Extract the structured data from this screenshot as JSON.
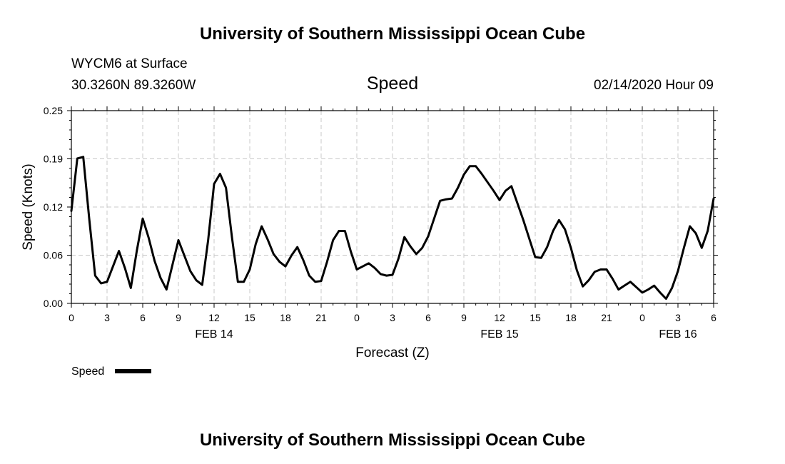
{
  "header": {
    "title": "University of Southern Mississippi Ocean Cube",
    "station": "WYCM6 at Surface",
    "coords": "30.3260N 89.3260W",
    "variable": "Speed",
    "datetime": "02/14/2020 Hour 09"
  },
  "footer": {
    "title": "University of Southern Mississippi Ocean Cube"
  },
  "chart_data": {
    "type": "line",
    "title": "Speed",
    "xlabel": "Forecast (Z)",
    "ylabel": "Speed (Knots)",
    "ylim": [
      0,
      0.25
    ],
    "xlim": [
      0,
      54
    ],
    "y_ticks": [
      "0.00",
      "0.06",
      "0.12",
      "0.19",
      "0.25"
    ],
    "y_tick_values": [
      0,
      0.0625,
      0.125,
      0.1875,
      0.25
    ],
    "x_ticks": [
      "0",
      "3",
      "6",
      "9",
      "12",
      "15",
      "18",
      "21",
      "0",
      "3",
      "6",
      "9",
      "12",
      "15",
      "18",
      "21",
      "0",
      "3",
      "6"
    ],
    "date_labels": [
      {
        "text": "FEB 14",
        "at_hour": 12
      },
      {
        "text": "FEB 15",
        "at_hour": 36
      },
      {
        "text": "FEB 16",
        "at_hour": 51
      }
    ],
    "grid": true,
    "legend": {
      "label": "Speed",
      "placement": "bottom-left"
    },
    "series": [
      {
        "name": "Speed",
        "color": "#000000",
        "x": [
          0,
          0.5,
          1,
          1.5,
          2,
          2.5,
          3,
          3.5,
          4,
          4.5,
          5,
          5.5,
          6,
          6.5,
          7,
          7.5,
          8,
          8.5,
          9,
          9.5,
          10,
          10.5,
          11,
          11.5,
          12,
          12.5,
          13,
          13.5,
          14,
          14.5,
          15,
          15.5,
          16,
          16.5,
          17,
          17.5,
          18,
          18.5,
          19,
          19.5,
          20,
          20.5,
          21,
          21.5,
          22,
          22.5,
          23,
          23.5,
          24,
          24.5,
          25,
          25.5,
          26,
          26.5,
          27,
          27.5,
          28,
          28.5,
          29,
          29.5,
          30,
          30.5,
          31,
          31.5,
          32,
          32.5,
          33,
          33.5,
          34,
          34.5,
          35,
          35.5,
          36,
          36.5,
          37,
          37.5,
          38,
          38.5,
          39,
          39.5,
          40,
          40.5,
          41,
          41.5,
          42,
          42.5,
          43,
          43.5,
          44,
          44.5,
          45,
          45.5,
          46,
          46.5,
          47,
          47.5,
          48,
          48.5,
          49,
          49.5,
          50,
          50.5,
          51,
          51.5,
          52,
          52.5,
          53,
          53.5,
          54
        ],
        "values": [
          0.12,
          0.188,
          0.19,
          0.11,
          0.036,
          0.026,
          0.028,
          0.048,
          0.068,
          0.046,
          0.02,
          0.068,
          0.11,
          0.085,
          0.055,
          0.033,
          0.018,
          0.05,
          0.082,
          0.062,
          0.042,
          0.03,
          0.024,
          0.082,
          0.155,
          0.168,
          0.15,
          0.086,
          0.028,
          0.028,
          0.044,
          0.077,
          0.1,
          0.083,
          0.064,
          0.054,
          0.048,
          0.062,
          0.073,
          0.056,
          0.036,
          0.028,
          0.029,
          0.054,
          0.082,
          0.094,
          0.094,
          0.067,
          0.044,
          0.048,
          0.052,
          0.046,
          0.038,
          0.036,
          0.037,
          0.058,
          0.086,
          0.074,
          0.064,
          0.072,
          0.087,
          0.11,
          0.133,
          0.135,
          0.136,
          0.15,
          0.167,
          0.178,
          0.178,
          0.168,
          0.157,
          0.146,
          0.134,
          0.146,
          0.152,
          0.13,
          0.108,
          0.084,
          0.06,
          0.059,
          0.073,
          0.094,
          0.108,
          0.096,
          0.072,
          0.043,
          0.022,
          0.03,
          0.041,
          0.044,
          0.044,
          0.032,
          0.018,
          0.023,
          0.028,
          0.021,
          0.014,
          0.018,
          0.023,
          0.014,
          0.006,
          0.02,
          0.042,
          0.072,
          0.1,
          0.091,
          0.072,
          0.094,
          0.136
        ]
      }
    ]
  }
}
